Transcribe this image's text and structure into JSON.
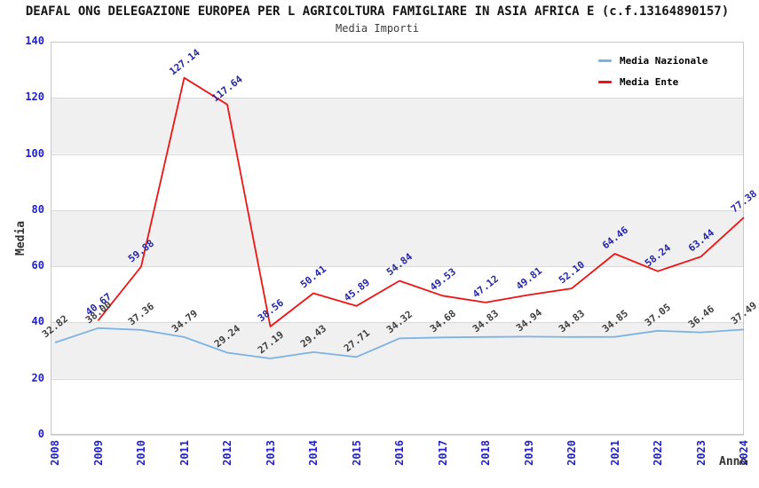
{
  "title": "DEAFAL ONG DELEGAZIONE EUROPEA PER L AGRICOLTURA FAMIGLIARE IN ASIA AFRICA E (c.f.13164890157)",
  "subtitle": "Media Importi",
  "legend": {
    "items": [
      {
        "label": "Media Nazionale",
        "color": "#7db2e5"
      },
      {
        "label": "Media Ente",
        "color": "#ee1414"
      }
    ]
  },
  "axes": {
    "y_title": "Media",
    "x_title": "Anno",
    "y_ticks": [
      0,
      20,
      40,
      60,
      80,
      100,
      120,
      140
    ],
    "tick_color": "#2222cc",
    "gridline_color": "#d9d9d9",
    "border_color": "#c8c8c8",
    "band_color": "#f0f0f0"
  },
  "chart_data": {
    "type": "line",
    "title": "Media Importi",
    "xlabel": "Anno",
    "ylabel": "Media",
    "ylim": [
      0,
      140
    ],
    "grid": true,
    "legend_position": "top-right",
    "x": [
      2008,
      2009,
      2010,
      2011,
      2012,
      2013,
      2014,
      2015,
      2016,
      2017,
      2018,
      2019,
      2020,
      2021,
      2022,
      2023,
      2024
    ],
    "series": [
      {
        "name": "Media Nazionale",
        "color": "#7db2e5",
        "label_color": "#3f3f3f",
        "values": [
          32.82,
          38.0,
          37.36,
          34.79,
          29.24,
          27.19,
          29.43,
          27.71,
          34.32,
          34.68,
          34.83,
          34.94,
          34.83,
          34.85,
          37.05,
          36.46,
          37.49
        ]
      },
      {
        "name": "Media Ente",
        "color": "#ee1414",
        "label_color": "#2626a8",
        "values": [
          null,
          40.67,
          59.88,
          127.14,
          117.64,
          38.56,
          50.41,
          45.89,
          54.84,
          49.53,
          47.12,
          49.81,
          52.1,
          64.46,
          58.24,
          63.44,
          77.38
        ]
      }
    ]
  }
}
